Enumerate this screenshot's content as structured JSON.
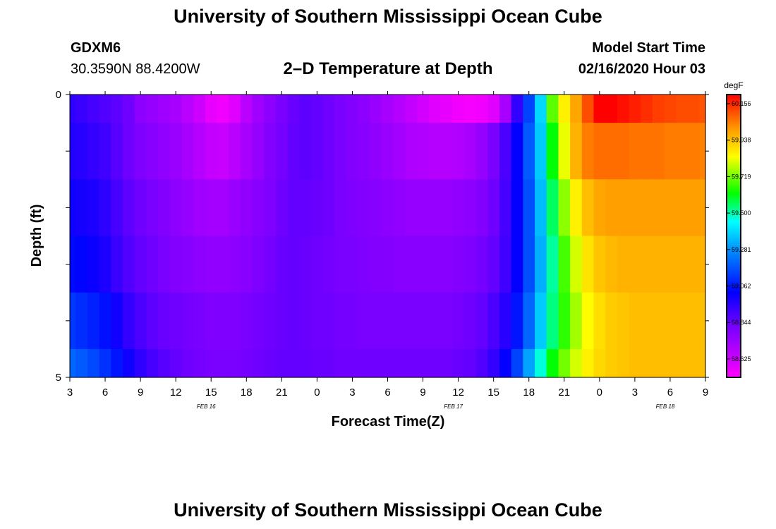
{
  "header": {
    "title": "University of Southern Mississippi Ocean Cube",
    "station": "GDXM6",
    "coords": "30.3590N 88.4200W",
    "subtitle": "2–D Temperature at Depth",
    "model_start_label": "Model Start Time",
    "model_start_value": "02/16/2020 Hour 03"
  },
  "footer": {
    "title": "University of Southern Mississippi Ocean Cube"
  },
  "chart_data": {
    "type": "heatmap",
    "title": "2–D Temperature at Depth",
    "xlabel": "Forecast Time(Z)",
    "ylabel": "Depth (ft)",
    "x_tick_labels": [
      "3",
      "6",
      "9",
      "12",
      "15",
      "18",
      "21",
      "0",
      "3",
      "6",
      "9",
      "12",
      "15",
      "18",
      "21",
      "0",
      "3",
      "6",
      "9"
    ],
    "x_date_labels": [
      {
        "text": "FEB 16",
        "at_tick": 4
      },
      {
        "text": "FEB 17",
        "at_tick": 11
      },
      {
        "text": "FEB 18",
        "at_tick": 17
      }
    ],
    "y_tick_labels": [
      "0",
      "5"
    ],
    "y_range": [
      0,
      5
    ],
    "colorbar": {
      "unit": "degF",
      "labels": [
        "60.156",
        "59.938",
        "59.719",
        "59.500",
        "59.281",
        "59.062",
        "58.844",
        "58.625"
      ],
      "min": 58.55,
      "max": 60.2
    },
    "x_hours": [
      3,
      4,
      5,
      6,
      7,
      8,
      9,
      10,
      11,
      12,
      13,
      14,
      15,
      16,
      17,
      18,
      19,
      20,
      21,
      22,
      23,
      24,
      25,
      26,
      27,
      28,
      29,
      30,
      31,
      32,
      33,
      34,
      35,
      36,
      37,
      38,
      39,
      40,
      41,
      42,
      43,
      44,
      45,
      46,
      47,
      48,
      49,
      50,
      51,
      52,
      53,
      54,
      55,
      56,
      57
    ],
    "depths": [
      0,
      1,
      2,
      3,
      4,
      5
    ],
    "z_rows": [
      [
        58.97,
        58.95,
        58.93,
        58.91,
        58.89,
        58.86,
        58.8,
        58.78,
        58.76,
        58.74,
        58.7,
        58.66,
        58.6,
        58.58,
        58.62,
        58.7,
        58.76,
        58.8,
        58.84,
        58.87,
        58.89,
        58.88,
        58.86,
        58.84,
        58.82,
        58.8,
        58.77,
        58.74,
        58.71,
        58.68,
        58.65,
        58.62,
        58.6,
        58.58,
        58.57,
        58.58,
        58.62,
        58.74,
        58.96,
        59.16,
        59.4,
        59.7,
        59.86,
        59.98,
        60.1,
        60.2,
        60.2,
        60.18,
        60.16,
        60.14,
        60.12,
        60.11,
        60.1,
        60.1,
        60.09
      ],
      [
        58.99,
        58.98,
        58.96,
        58.94,
        58.9,
        58.86,
        58.83,
        58.81,
        58.79,
        58.77,
        58.74,
        58.71,
        58.68,
        58.67,
        58.7,
        58.74,
        58.78,
        58.82,
        58.85,
        58.88,
        58.89,
        58.88,
        58.86,
        58.84,
        58.82,
        58.81,
        58.79,
        58.77,
        58.75,
        58.73,
        58.72,
        58.71,
        58.71,
        58.72,
        58.74,
        58.78,
        58.84,
        58.92,
        59.04,
        59.2,
        59.38,
        59.62,
        59.82,
        59.96,
        60.04,
        60.06,
        60.06,
        60.06,
        60.05,
        60.05,
        60.05,
        60.04,
        60.04,
        60.04,
        60.03
      ],
      [
        59.02,
        59.01,
        59.0,
        58.97,
        58.93,
        58.89,
        58.86,
        58.84,
        58.82,
        58.8,
        58.78,
        58.76,
        58.75,
        58.75,
        58.77,
        58.79,
        58.81,
        58.83,
        58.86,
        58.88,
        58.88,
        58.87,
        58.86,
        58.84,
        58.83,
        58.82,
        58.81,
        58.8,
        58.79,
        58.78,
        58.78,
        58.78,
        58.78,
        58.79,
        58.8,
        58.82,
        58.86,
        58.93,
        59.04,
        59.18,
        59.36,
        59.56,
        59.74,
        59.86,
        59.94,
        59.98,
        59.99,
        59.99,
        59.99,
        59.99,
        59.99,
        59.99,
        59.99,
        59.99,
        59.99
      ],
      [
        59.06,
        59.05,
        59.03,
        59.0,
        58.95,
        58.91,
        58.88,
        58.86,
        58.84,
        58.82,
        58.81,
        58.8,
        58.79,
        58.79,
        58.8,
        58.81,
        58.83,
        58.85,
        58.87,
        58.88,
        58.87,
        58.86,
        58.85,
        58.84,
        58.84,
        58.83,
        58.82,
        58.82,
        58.81,
        58.81,
        58.81,
        58.81,
        58.81,
        58.82,
        58.83,
        58.85,
        58.88,
        58.94,
        59.04,
        59.18,
        59.34,
        59.52,
        59.68,
        59.8,
        59.88,
        59.93,
        59.95,
        59.96,
        59.96,
        59.96,
        59.96,
        59.96,
        59.96,
        59.96,
        59.96
      ],
      [
        59.14,
        59.12,
        59.1,
        59.07,
        59.02,
        58.96,
        58.92,
        58.89,
        58.87,
        58.86,
        58.85,
        58.84,
        58.83,
        58.83,
        58.83,
        58.84,
        58.85,
        58.86,
        58.87,
        58.88,
        58.87,
        58.86,
        58.86,
        58.85,
        58.85,
        58.84,
        58.84,
        58.84,
        58.84,
        58.84,
        58.84,
        58.84,
        58.84,
        58.85,
        58.86,
        58.88,
        58.92,
        58.98,
        59.08,
        59.22,
        59.38,
        59.54,
        59.66,
        59.76,
        59.84,
        59.89,
        59.92,
        59.93,
        59.94,
        59.94,
        59.94,
        59.94,
        59.94,
        59.94,
        59.94
      ],
      [
        59.22,
        59.2,
        59.17,
        59.13,
        59.08,
        59.02,
        58.97,
        58.93,
        58.9,
        58.88,
        58.86,
        58.85,
        58.84,
        58.84,
        58.84,
        58.85,
        58.86,
        58.87,
        58.88,
        58.88,
        58.88,
        58.87,
        58.87,
        58.86,
        58.86,
        58.86,
        58.86,
        58.86,
        58.86,
        58.86,
        58.86,
        58.86,
        58.86,
        58.87,
        58.88,
        58.91,
        58.96,
        59.04,
        59.16,
        59.32,
        59.48,
        59.62,
        59.72,
        59.8,
        59.86,
        59.9,
        59.92,
        59.93,
        59.94,
        59.94,
        59.94,
        59.94,
        59.94,
        59.94,
        59.94
      ]
    ]
  }
}
